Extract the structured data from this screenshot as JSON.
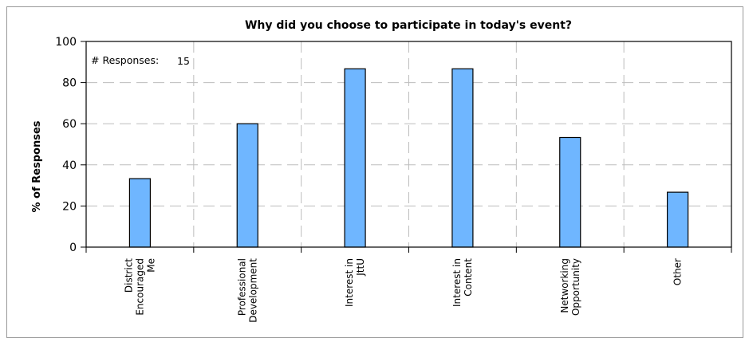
{
  "chart_data": {
    "type": "bar",
    "title": "Why did you choose to participate in today's event?",
    "xlabel": "",
    "ylabel": "% of Responses",
    "ylim": [
      0,
      100
    ],
    "yticks": [
      "0",
      "20",
      "40",
      "60",
      "80",
      "100"
    ],
    "grid": true,
    "bar_color": "#6fb6ff",
    "categories": [
      [
        "District",
        "Encouraged",
        "Me"
      ],
      [
        "Professional",
        "Development"
      ],
      [
        "Interest in",
        "JttU"
      ],
      [
        "Interest in",
        "Content"
      ],
      [
        "Networking",
        "Opportunity"
      ],
      [
        "Other"
      ]
    ],
    "values": [
      33.3,
      60,
      86.7,
      86.7,
      53.3,
      26.7
    ],
    "annotation": {
      "label": "# Responses:",
      "value": "15"
    }
  }
}
